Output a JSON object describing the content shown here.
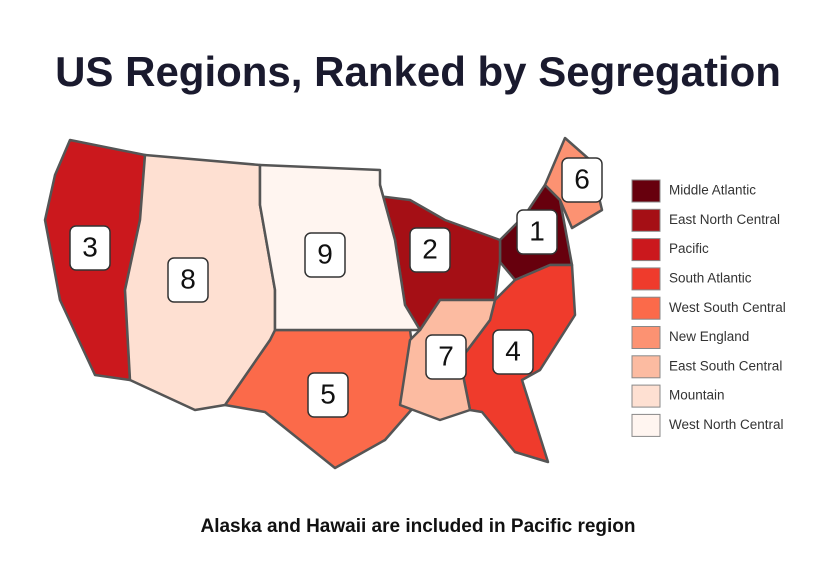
{
  "title": "US Regions, Ranked by Segregation",
  "regions": [
    {
      "name": "Middle Atlantic",
      "rank": 1,
      "color": "#67000d"
    },
    {
      "name": "East North Central",
      "rank": 2,
      "color": "#a50f15"
    },
    {
      "name": "Pacific",
      "rank": 3,
      "color": "#cb181d"
    },
    {
      "name": "South Atlantic",
      "rank": 4,
      "color": "#ef3b2c"
    },
    {
      "name": "West South Central",
      "rank": 5,
      "color": "#fb6a4a"
    },
    {
      "name": "New England",
      "rank": 6,
      "color": "#fc9272"
    },
    {
      "name": "East South Central",
      "rank": 7,
      "color": "#fcbba1"
    },
    {
      "name": "Mountain",
      "rank": 8,
      "color": "#fee0d2"
    },
    {
      "name": "West North Central",
      "rank": 9,
      "color": "#fff5f0"
    }
  ],
  "footnote": "Alaska and Hawaii are included in Pacific region"
}
